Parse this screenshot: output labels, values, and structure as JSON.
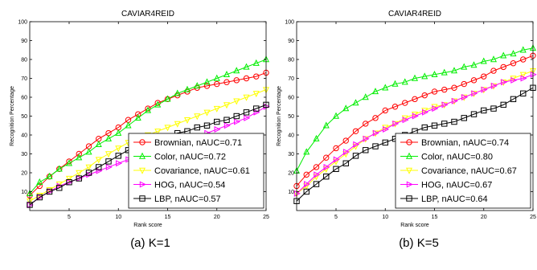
{
  "colors": {
    "Brownian": "#ff0000",
    "Color": "#00ee00",
    "Covariance": "#ffff00",
    "HOG": "#ff00ff",
    "LBP": "#000000"
  },
  "chart_data": [
    {
      "type": "line",
      "title": "CAVIAR4REID",
      "xlabel": "Rank score",
      "ylabel": "Recognition Percentage",
      "caption": "(a)  K=1",
      "xlim": [
        1,
        25
      ],
      "ylim": [
        0,
        100
      ],
      "xticks": [
        5,
        10,
        15,
        20,
        25
      ],
      "yticks": [
        10,
        20,
        30,
        40,
        50,
        60,
        70,
        80,
        90,
        100
      ],
      "grid": false,
      "legend_position": "bottom-right",
      "x": [
        1,
        2,
        3,
        4,
        5,
        6,
        7,
        8,
        9,
        10,
        11,
        12,
        13,
        14,
        15,
        16,
        17,
        18,
        19,
        20,
        21,
        22,
        23,
        24,
        25
      ],
      "series": [
        {
          "name": "Brownian",
          "legend": "Brownian,  nAUC=0.71",
          "marker": "circle",
          "values": [
            8,
            13,
            18,
            22,
            26,
            30,
            34,
            38,
            41,
            44,
            48,
            51,
            54,
            57,
            59,
            61,
            63,
            65,
            66,
            67,
            68,
            69,
            70,
            71,
            73
          ]
        },
        {
          "name": "Color",
          "legend": "Color,  nAUC=0.72",
          "marker": "triangle-up",
          "values": [
            9,
            15,
            18,
            22,
            25,
            28,
            31,
            35,
            38,
            41,
            45,
            49,
            53,
            56,
            59,
            62,
            64,
            66,
            68,
            70,
            72,
            74,
            76,
            78,
            80
          ]
        },
        {
          "name": "Covariance",
          "legend": "Covariance,  nAUC=0.61",
          "marker": "triangle-down",
          "values": [
            5,
            8,
            11,
            14,
            17,
            20,
            23,
            27,
            30,
            33,
            36,
            38,
            40,
            42,
            44,
            46,
            48,
            50,
            52,
            54,
            56,
            58,
            60,
            62,
            64
          ]
        },
        {
          "name": "HOG",
          "legend": "HOG,  nAUC=0.54",
          "marker": "triangle-right",
          "values": [
            3,
            7,
            10,
            13,
            15,
            17,
            19,
            21,
            23,
            25,
            27,
            29,
            31,
            33,
            34,
            36,
            38,
            39,
            41,
            43,
            45,
            47,
            49,
            52,
            55
          ]
        },
        {
          "name": "LBP",
          "legend": "LBP,  nAUC=0.57",
          "marker": "square",
          "values": [
            3,
            7,
            10,
            12,
            15,
            17,
            20,
            23,
            26,
            29,
            32,
            34,
            36,
            38,
            39,
            41,
            42,
            44,
            45,
            47,
            48,
            50,
            52,
            54,
            56
          ]
        }
      ]
    },
    {
      "type": "line",
      "title": "CAVIAR4REID",
      "xlabel": "Rank score",
      "ylabel": "Recognition Percentage",
      "caption": "(b)  K=5",
      "xlim": [
        1,
        25
      ],
      "ylim": [
        0,
        100
      ],
      "xticks": [
        5,
        10,
        15,
        20,
        25
      ],
      "yticks": [
        10,
        20,
        30,
        40,
        50,
        60,
        70,
        80,
        90,
        100
      ],
      "grid": false,
      "legend_position": "bottom-right",
      "x": [
        1,
        2,
        3,
        4,
        5,
        6,
        7,
        8,
        9,
        10,
        11,
        12,
        13,
        14,
        15,
        16,
        17,
        18,
        19,
        20,
        21,
        22,
        23,
        24,
        25
      ],
      "series": [
        {
          "name": "Brownian",
          "legend": "Brownian,  nAUC=0.74",
          "marker": "circle",
          "values": [
            13,
            19,
            23,
            28,
            33,
            37,
            42,
            46,
            49,
            53,
            55,
            57,
            59,
            61,
            63,
            64,
            65,
            67,
            69,
            71,
            74,
            76,
            78,
            80,
            82
          ]
        },
        {
          "name": "Color",
          "legend": "Color,  nAUC=0.80",
          "marker": "triangle-up",
          "values": [
            21,
            31,
            38,
            45,
            50,
            54,
            57,
            60,
            63,
            65,
            67,
            68,
            70,
            71,
            72,
            73,
            74,
            76,
            77,
            79,
            80,
            82,
            83,
            85,
            86
          ]
        },
        {
          "name": "Covariance",
          "legend": "Covariance,  nAUC=0.67",
          "marker": "triangle-down",
          "values": [
            9,
            13,
            18,
            22,
            26,
            30,
            34,
            38,
            41,
            44,
            46,
            49,
            51,
            53,
            55,
            56,
            58,
            60,
            62,
            64,
            66,
            68,
            70,
            72,
            74
          ]
        },
        {
          "name": "HOG",
          "legend": "HOG,  nAUC=0.67",
          "marker": "triangle-right",
          "values": [
            9,
            14,
            19,
            23,
            27,
            31,
            35,
            38,
            41,
            43,
            46,
            48,
            50,
            52,
            54,
            56,
            58,
            60,
            62,
            64,
            66,
            68,
            69,
            70,
            72
          ]
        },
        {
          "name": "LBP",
          "legend": "LBP,  nAUC=0.64",
          "marker": "square",
          "values": [
            5,
            10,
            14,
            18,
            22,
            25,
            29,
            32,
            34,
            36,
            38,
            40,
            42,
            44,
            45,
            46,
            47,
            49,
            51,
            53,
            54,
            56,
            59,
            62,
            65
          ]
        }
      ]
    }
  ]
}
